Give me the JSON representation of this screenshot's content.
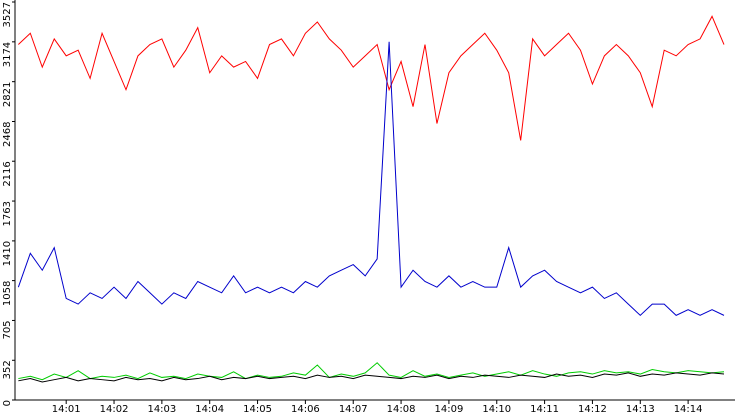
{
  "chart_data": {
    "type": "line",
    "x": [
      0,
      0.25,
      0.5,
      0.75,
      1,
      1.25,
      1.5,
      1.75,
      2,
      2.25,
      2.5,
      2.75,
      3,
      3.25,
      3.5,
      3.75,
      4,
      4.25,
      4.5,
      4.75,
      5,
      5.25,
      5.5,
      5.75,
      6,
      6.25,
      6.5,
      6.75,
      7,
      7.25,
      7.5,
      7.75,
      8,
      8.25,
      8.5,
      8.75,
      9,
      9.25,
      9.5,
      9.75,
      10,
      10.25,
      10.5,
      10.75,
      11,
      11.25,
      11.5,
      11.75,
      12,
      12.25,
      12.5,
      12.75,
      13,
      13.25,
      13.5,
      13.75,
      14,
      14.25,
      14.5,
      14.75
    ],
    "series": [
      {
        "color": "#ff0000",
        "values": [
          3150,
          3250,
          2950,
          3200,
          3050,
          3100,
          2850,
          3250,
          3000,
          2750,
          3050,
          3150,
          3200,
          2950,
          3100,
          3300,
          2900,
          3050,
          2950,
          3000,
          2850,
          3150,
          3200,
          3050,
          3250,
          3350,
          3200,
          3100,
          2950,
          3050,
          3150,
          2750,
          3000,
          2600,
          3150,
          2450,
          2900,
          3050,
          3150,
          3250,
          3100,
          2900,
          2300,
          3200,
          3050,
          3150,
          3250,
          3100,
          2800,
          3050,
          3150,
          3050,
          2900,
          2600,
          3100,
          3050,
          3150,
          3200,
          3400,
          3150
        ]
      },
      {
        "color": "#0000cc",
        "values": [
          1000,
          1300,
          1150,
          1350,
          900,
          850,
          950,
          900,
          1000,
          900,
          1050,
          950,
          850,
          950,
          900,
          1050,
          1000,
          950,
          1100,
          950,
          1000,
          950,
          1000,
          950,
          1050,
          1000,
          1100,
          1150,
          1200,
          1100,
          1250,
          3174,
          1000,
          1150,
          1050,
          1000,
          1100,
          1000,
          1050,
          1000,
          1000,
          1350,
          1000,
          1100,
          1150,
          1050,
          1000,
          950,
          1000,
          900,
          950,
          850,
          750,
          850,
          850,
          750,
          800,
          750,
          800,
          750
        ]
      },
      {
        "color": "#00cc00",
        "values": [
          190,
          210,
          180,
          230,
          200,
          260,
          190,
          210,
          200,
          220,
          190,
          240,
          200,
          210,
          190,
          230,
          210,
          200,
          250,
          190,
          220,
          200,
          210,
          240,
          220,
          310,
          200,
          230,
          210,
          240,
          330,
          220,
          200,
          260,
          210,
          230,
          200,
          220,
          240,
          210,
          230,
          250,
          220,
          260,
          230,
          210,
          240,
          250,
          230,
          260,
          240,
          250,
          230,
          270,
          250,
          240,
          260,
          250,
          240,
          250
        ]
      },
      {
        "color": "#000000",
        "values": [
          170,
          190,
          160,
          180,
          200,
          170,
          190,
          180,
          170,
          200,
          180,
          190,
          170,
          200,
          180,
          190,
          210,
          180,
          200,
          190,
          210,
          190,
          200,
          210,
          190,
          220,
          200,
          210,
          190,
          220,
          210,
          200,
          190,
          210,
          200,
          220,
          190,
          210,
          200,
          220,
          210,
          200,
          220,
          210,
          200,
          230,
          210,
          220,
          200,
          230,
          220,
          240,
          210,
          230,
          220,
          240,
          230,
          220,
          240,
          230
        ]
      }
    ],
    "xlim": [
      -0.07,
      14.98
    ],
    "xticks": [
      {
        "value": 1,
        "label": "14:01"
      },
      {
        "value": 2,
        "label": "14:02"
      },
      {
        "value": 3,
        "label": "14:03"
      },
      {
        "value": 4,
        "label": "14:04"
      },
      {
        "value": 5,
        "label": "14:05"
      },
      {
        "value": 6,
        "label": "14:06"
      },
      {
        "value": 7,
        "label": "14:07"
      },
      {
        "value": 8,
        "label": "14:08"
      },
      {
        "value": 9,
        "label": "14:09"
      },
      {
        "value": 10,
        "label": "14:10"
      },
      {
        "value": 11,
        "label": "14:11"
      },
      {
        "value": 12,
        "label": "14:12"
      },
      {
        "value": 13,
        "label": "14:13"
      },
      {
        "value": 14,
        "label": "14:14"
      }
    ],
    "ylim": [
      0,
      3527
    ],
    "yticks": [
      0,
      352,
      705,
      1058,
      1410,
      1763,
      2116,
      2468,
      2821,
      3174,
      3527
    ]
  }
}
